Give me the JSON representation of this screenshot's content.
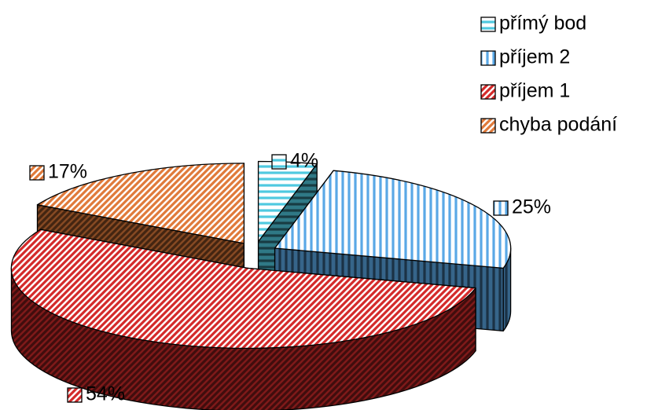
{
  "chart_data": {
    "type": "pie",
    "categories": [
      "přímý bod",
      "příjem 2",
      "příjem 1",
      "chyba podání"
    ],
    "values": [
      4,
      25,
      54,
      17
    ],
    "value_labels": [
      "4%",
      "25%",
      "54%",
      "17%"
    ],
    "colors": [
      "#4fc9e0",
      "#5aa8e6",
      "#d42a2a",
      "#e07a3a"
    ],
    "patterns": [
      "horizontal",
      "vertical",
      "diagonal",
      "diagonal"
    ],
    "legend": "top-right"
  }
}
